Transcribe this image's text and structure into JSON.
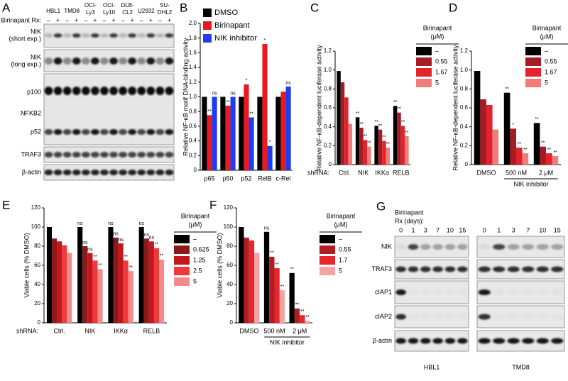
{
  "blot_a": {
    "label": "A",
    "cell_lines": [
      [
        "HBL1"
      ],
      [
        "TMD8"
      ],
      [
        "OCI-",
        "Ly3"
      ],
      [
        "OCI-",
        "Ly10"
      ],
      [
        "DLB-",
        "CL2"
      ],
      [
        "U2932"
      ],
      [
        "SU-",
        "DHL2"
      ]
    ],
    "treatment_label": "Birinapant Rx:",
    "treatment": [
      "–",
      "+",
      "–",
      "+",
      "–",
      "+",
      "–",
      "+",
      "–",
      "+",
      "–",
      "+",
      "–",
      "+"
    ],
    "rows": [
      [
        "NIK",
        "(short exp.)"
      ],
      [
        "NIK",
        "(long exp.)"
      ],
      [
        "p100"
      ],
      [
        "NFKB2"
      ],
      [
        "p52"
      ],
      [
        "TRAF3"
      ],
      [
        "β-actin"
      ]
    ]
  },
  "blot_g": {
    "label": "G",
    "treatment_label": [
      "Birinapant",
      "Rx (days):"
    ],
    "days": [
      0,
      1,
      3,
      7,
      10,
      15
    ],
    "rows": [
      "NIK",
      "TRAF3",
      "cIAP1",
      "cIAP2",
      "β-actin"
    ],
    "cell_lines": [
      "HBL1",
      "TMD8"
    ]
  },
  "chart_data": [
    {
      "type": "bar",
      "label": "B",
      "ylabel": "Relative NF-κB motif DNA-binding activity",
      "categories": [
        "p65",
        "p50",
        "p52",
        "RelB",
        "c-Rel"
      ],
      "ylim": [
        0,
        2
      ],
      "yticks": [
        0,
        0.2,
        0.4,
        0.6,
        0.8,
        {
          "value": 1,
          "label": "1.0"
        },
        1.2,
        1.4,
        1.6,
        1.8,
        {
          "value": 2,
          "label": "2.0"
        }
      ],
      "series": [
        {
          "name": "DMSO",
          "color": "#000000",
          "values": [
            1.0,
            1.0,
            1.0,
            1.0,
            1.0
          ],
          "sig": [
            null,
            null,
            null,
            null,
            null
          ]
        },
        {
          "name": "Birinapant",
          "color": "#e8191f",
          "values": [
            0.75,
            0.88,
            1.17,
            1.72,
            1.07
          ],
          "sig": [
            "**",
            "**",
            "*",
            "*",
            null
          ]
        },
        {
          "name": "NIK inhibitor",
          "color": "#1f3cf0",
          "values": [
            1.0,
            1.0,
            0.72,
            0.33,
            1.14
          ],
          "sig": [
            "ns",
            "ns",
            "**",
            "*",
            "ns"
          ]
        }
      ]
    },
    {
      "type": "bar",
      "label": "C",
      "ylabel": "Relative NF-κB-dependent luciferase activity",
      "xlabel": "shRNA:",
      "legend_title": [
        "Birinapant",
        "(μM)"
      ],
      "categories": [
        "Ctrl.",
        "NIK",
        "IKKα",
        "RELB"
      ],
      "ylim": [
        0,
        1.2
      ],
      "yticks": [
        0,
        0.2,
        0.4,
        0.6,
        0.8,
        {
          "value": 1,
          "label": "1.0"
        },
        1.2
      ],
      "series": [
        {
          "name": "–",
          "color": "#000000",
          "values": [
            0.99,
            0.5,
            0.41,
            0.62
          ],
          "sig": [
            null,
            "**",
            "**",
            "**"
          ]
        },
        {
          "name": "0.55",
          "color": "#a51c24",
          "values": [
            0.87,
            0.39,
            0.37,
            0.55
          ],
          "sig": [
            null,
            "**",
            "**",
            "**"
          ]
        },
        {
          "name": "1.67",
          "color": "#e4222b",
          "values": [
            0.71,
            0.26,
            0.25,
            0.41
          ],
          "sig": [
            null,
            "**",
            "**",
            "**"
          ]
        },
        {
          "name": "5",
          "color": "#f07c7c",
          "values": [
            0.43,
            0.19,
            0.18,
            0.3
          ],
          "sig": [
            null,
            "**",
            "**",
            "**"
          ]
        }
      ]
    },
    {
      "type": "bar",
      "label": "D",
      "ylabel": "Relative NF-κB-dependent luciferase activity",
      "legend_title": [
        "Birinapant",
        "(μM)"
      ],
      "group_label": "NIK inhibitor",
      "categories": [
        "DMSO",
        "500 nM",
        "2 μM"
      ],
      "ylim": [
        0,
        1.2
      ],
      "yticks": [
        0,
        0.2,
        0.4,
        0.6,
        0.8,
        {
          "value": 1,
          "label": "1.0"
        },
        1.2
      ],
      "series": [
        {
          "name": "–",
          "color": "#000000",
          "values": [
            0.99,
            0.76,
            0.44
          ],
          "sig": [
            null,
            "**",
            "**"
          ]
        },
        {
          "name": "0.55",
          "color": "#a51c24",
          "values": [
            0.69,
            0.38,
            0.19
          ],
          "sig": [
            null,
            "*",
            "**"
          ]
        },
        {
          "name": "1.67",
          "color": "#e4222b",
          "values": [
            0.63,
            0.18,
            0.12
          ],
          "sig": [
            null,
            "**",
            "**"
          ]
        },
        {
          "name": "5",
          "color": "#f07c7c",
          "values": [
            0.37,
            0.12,
            0.09
          ],
          "sig": [
            null,
            "**",
            "**"
          ]
        }
      ]
    },
    {
      "type": "bar",
      "label": "E",
      "ylabel": "Viable cells (% DMSO)",
      "xlabel": "shRNA:",
      "legend_title": [
        "Birinapant",
        "(μM)"
      ],
      "categories": [
        "Ctrl.",
        "NIK",
        "IKKα",
        "RELB"
      ],
      "ylim": [
        0,
        120
      ],
      "yticks": [
        0,
        20,
        40,
        60,
        80,
        100,
        120
      ],
      "series": [
        {
          "name": "–",
          "color": "#000000",
          "values": [
            100,
            100,
            100,
            100
          ],
          "sig": [
            null,
            "ns",
            "ns",
            "ns"
          ]
        },
        {
          "name": "0.625",
          "color": "#8b1a1a",
          "values": [
            88,
            80,
            89,
            88
          ],
          "sig": [
            null,
            "ns",
            "ns",
            "ns"
          ]
        },
        {
          "name": "1.25",
          "color": "#c4161c",
          "values": [
            85,
            73,
            83,
            85
          ],
          "sig": [
            null,
            "ns",
            "ns",
            "ns"
          ]
        },
        {
          "name": "2.5",
          "color": "#ee3a3a",
          "values": [
            81,
            65,
            65,
            78
          ],
          "sig": [
            null,
            "**",
            "**",
            "**"
          ]
        },
        {
          "name": "5",
          "color": "#f28b8b",
          "values": [
            73,
            56,
            54,
            66
          ],
          "sig": [
            null,
            "**",
            "**",
            "**"
          ]
        }
      ]
    },
    {
      "type": "bar",
      "label": "F",
      "ylabel": "Viable cells (% DMSO)",
      "legend_title": [
        "Birinapant",
        "(μM)"
      ],
      "group_label": "NIK inhibitor",
      "categories": [
        "DMSO",
        "500 nM",
        "2 μM"
      ],
      "ylim": [
        0,
        120
      ],
      "yticks": [
        0,
        20,
        40,
        60,
        80,
        100,
        120
      ],
      "series": [
        {
          "name": "–",
          "color": "#000000",
          "values": [
            100,
            95,
            52
          ],
          "sig": [
            null,
            "ns",
            "**"
          ]
        },
        {
          "name": "0.55",
          "color": "#b01e24",
          "values": [
            89,
            69,
            15
          ],
          "sig": [
            null,
            "**",
            "**"
          ]
        },
        {
          "name": "1.7",
          "color": "#e8262c",
          "values": [
            86,
            57,
            8
          ],
          "sig": [
            null,
            "**",
            "**"
          ]
        },
        {
          "name": "5",
          "color": "#f4a3a3",
          "values": [
            73,
            34,
            2
          ],
          "sig": [
            null,
            "**",
            "**"
          ]
        }
      ]
    }
  ]
}
